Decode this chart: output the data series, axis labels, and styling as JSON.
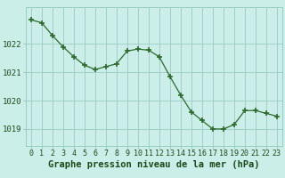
{
  "x": [
    0,
    1,
    2,
    3,
    4,
    5,
    6,
    7,
    8,
    9,
    10,
    11,
    12,
    13,
    14,
    15,
    16,
    17,
    18,
    19,
    20,
    21,
    22,
    23
  ],
  "y": [
    1022.85,
    1022.75,
    1022.3,
    1021.9,
    1021.55,
    1021.25,
    1021.1,
    1021.2,
    1021.3,
    1021.75,
    1021.82,
    1021.78,
    1021.55,
    1020.85,
    1020.2,
    1019.6,
    1019.3,
    1019.0,
    1019.0,
    1019.15,
    1019.65,
    1019.65,
    1019.55,
    1019.45
  ],
  "line_color": "#2d6a2d",
  "marker_color": "#2d6a2d",
  "bg_color": "#cceee8",
  "grid_color": "#99ccc6",
  "xlabel": "Graphe pression niveau de la mer (hPa)",
  "xlabel_color": "#1a4a1a",
  "yticks": [
    1019,
    1020,
    1021,
    1022
  ],
  "ylim": [
    1018.4,
    1023.3
  ],
  "xlim": [
    -0.5,
    23.5
  ],
  "xticks": [
    0,
    1,
    2,
    3,
    4,
    5,
    6,
    7,
    8,
    9,
    10,
    11,
    12,
    13,
    14,
    15,
    16,
    17,
    18,
    19,
    20,
    21,
    22,
    23
  ],
  "tick_fontsize": 6.0,
  "xlabel_fontsize": 7.5
}
